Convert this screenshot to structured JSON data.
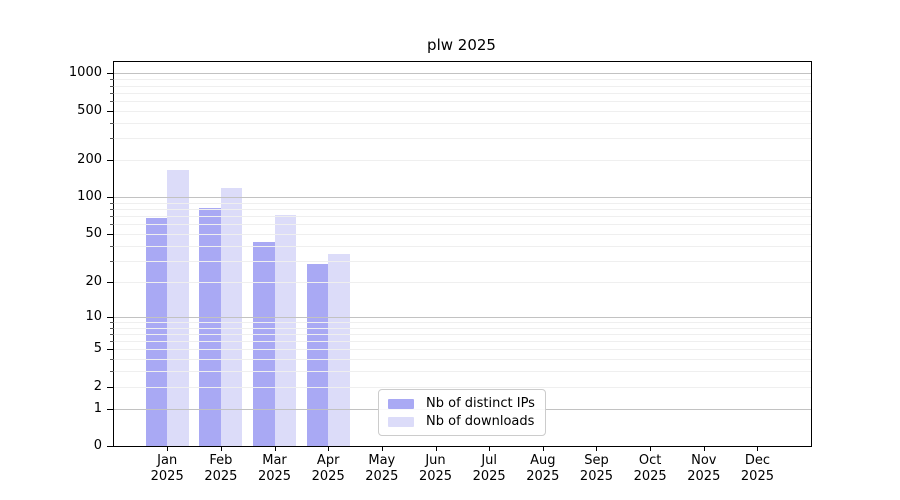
{
  "chart_data": {
    "type": "bar",
    "title": "plw 2025",
    "year_label": "2025",
    "categories": [
      "Jan",
      "Feb",
      "Mar",
      "Apr",
      "May",
      "Jun",
      "Jul",
      "Aug",
      "Sep",
      "Oct",
      "Nov",
      "Dec"
    ],
    "series": [
      {
        "name": "Nb of distinct IPs",
        "color": "#a9a9f4",
        "values": [
          67,
          82,
          43,
          28,
          0,
          0,
          0,
          0,
          0,
          0,
          0,
          0
        ]
      },
      {
        "name": "Nb of downloads",
        "color": "#dcdcf9",
        "values": [
          166,
          118,
          71,
          34,
          0,
          0,
          0,
          0,
          0,
          0,
          0,
          0
        ]
      }
    ],
    "y_axis": {
      "scale": "log10(1+v)",
      "lim": [
        0,
        1000
      ],
      "tick_values": [
        0,
        1,
        2,
        5,
        10,
        20,
        50,
        100,
        200,
        500,
        1000
      ],
      "major_gridlines": [
        1,
        10,
        100,
        1000
      ],
      "minor_gridlines": [
        2,
        3,
        4,
        5,
        6,
        7,
        8,
        9,
        20,
        30,
        40,
        50,
        60,
        70,
        80,
        90,
        200,
        300,
        400,
        500,
        600,
        700,
        800,
        900
      ],
      "grid": "on"
    },
    "legend": {
      "position": "lower-center"
    }
  }
}
